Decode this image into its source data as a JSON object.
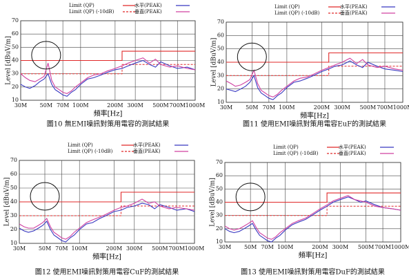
{
  "chart_data": [
    {
      "type": "line",
      "caption": "圖10 無EMI噪訊對策用電容的測試結果",
      "x_label": "頻率[Hz]",
      "y_label": "Level [dBuV/m]",
      "xscale": "log",
      "xlim": [
        30,
        1000
      ],
      "ylim": [
        10,
        70
      ],
      "grid": true,
      "xticks": [
        {
          "value": 30,
          "label": "30M"
        },
        {
          "value": 50,
          "label": "50M"
        },
        {
          "value": 70,
          "label": "70M"
        },
        {
          "value": 100,
          "label": "100M"
        },
        {
          "value": 200,
          "label": "200M"
        },
        {
          "value": 300,
          "label": "300M"
        },
        {
          "value": 500,
          "label": "500M"
        },
        {
          "value": 700,
          "label": "700M"
        },
        {
          "value": 1000,
          "label": "1000M"
        }
      ],
      "yticks": [
        10,
        20,
        30,
        40,
        50,
        60,
        70
      ],
      "series": [
        {
          "name": "Limit (QP)",
          "color": "#e02828",
          "dash": false,
          "x": [
            30,
            230,
            230,
            1000
          ],
          "values": [
            40,
            40,
            47,
            47
          ]
        },
        {
          "name": "Limit (QP) (-10dB)",
          "color": "#e02828",
          "dash": true,
          "x": [
            30,
            230,
            230,
            1000
          ],
          "values": [
            30,
            30,
            37,
            37
          ]
        },
        {
          "name": "水平(PEAK)",
          "color": "#3838c0",
          "dash": false,
          "x": [
            30,
            33,
            36,
            40,
            44,
            48,
            52,
            56,
            60,
            65,
            70,
            76,
            83,
            90,
            100,
            115,
            130,
            150,
            170,
            200,
            230,
            260,
            300,
            350,
            400,
            450,
            500,
            600,
            700,
            850,
            1000
          ],
          "values": [
            22,
            20,
            19,
            21,
            24,
            26,
            30,
            22,
            18,
            16,
            14,
            13,
            16,
            18,
            22,
            26,
            27,
            29,
            31,
            33,
            34,
            36,
            38,
            40,
            37,
            35,
            39,
            36,
            34,
            35,
            33
          ]
        },
        {
          "name": "垂直(PEAK)",
          "color": "#d040a0",
          "dash": false,
          "x": [
            30,
            33,
            36,
            40,
            44,
            48,
            52,
            56,
            60,
            65,
            70,
            76,
            83,
            90,
            100,
            115,
            130,
            150,
            170,
            200,
            230,
            260,
            300,
            350,
            400,
            450,
            500,
            600,
            700,
            850,
            1000
          ],
          "values": [
            30,
            27,
            25,
            24,
            26,
            28,
            38,
            25,
            20,
            18,
            16,
            15,
            17,
            20,
            23,
            27,
            29,
            30,
            32,
            34,
            36,
            38,
            40,
            42,
            38,
            41,
            37,
            35,
            36,
            34,
            33
          ]
        }
      ]
    },
    {
      "type": "line",
      "caption": "圖11 使用EMI噪訊對策用電容EuF的測試結果",
      "x_label": "頻率[Hz]",
      "y_label": "Level [dBuV/m]",
      "xscale": "log",
      "xlim": [
        30,
        1000
      ],
      "ylim": [
        10,
        70
      ],
      "grid": true,
      "xticks": [
        {
          "value": 30,
          "label": "30M"
        },
        {
          "value": 50,
          "label": "50M"
        },
        {
          "value": 70,
          "label": "70M"
        },
        {
          "value": 100,
          "label": "100M"
        },
        {
          "value": 200,
          "label": "200M"
        },
        {
          "value": 300,
          "label": "300M"
        },
        {
          "value": 500,
          "label": "500M"
        },
        {
          "value": 700,
          "label": "700M"
        },
        {
          "value": 1000,
          "label": "1000M"
        }
      ],
      "yticks": [
        10,
        20,
        30,
        40,
        50,
        60,
        70
      ],
      "series": [
        {
          "name": "Limit (QP)",
          "color": "#e02828",
          "dash": false,
          "x": [
            30,
            230,
            230,
            1000
          ],
          "values": [
            40,
            40,
            47,
            47
          ]
        },
        {
          "name": "Limit (QP) (-10dB)",
          "color": "#e02828",
          "dash": true,
          "x": [
            30,
            230,
            230,
            1000
          ],
          "values": [
            30,
            30,
            37,
            37
          ]
        },
        {
          "name": "水平(PEAK)",
          "color": "#3838c0",
          "dash": false,
          "x": [
            30,
            33,
            36,
            40,
            44,
            48,
            52,
            56,
            60,
            65,
            70,
            76,
            83,
            90,
            100,
            115,
            130,
            150,
            170,
            200,
            230,
            260,
            300,
            350,
            400,
            450,
            500,
            600,
            700,
            850,
            1000
          ],
          "values": [
            20,
            19,
            18,
            20,
            22,
            25,
            30,
            21,
            17,
            15,
            13,
            12,
            15,
            17,
            21,
            25,
            26,
            28,
            30,
            33,
            35,
            37,
            38,
            41,
            38,
            36,
            40,
            37,
            35,
            34,
            33
          ]
        },
        {
          "name": "垂直(PEAK)",
          "color": "#d040a0",
          "dash": false,
          "x": [
            30,
            33,
            36,
            40,
            44,
            48,
            52,
            56,
            60,
            65,
            70,
            76,
            83,
            90,
            100,
            115,
            130,
            150,
            170,
            200,
            230,
            260,
            300,
            350,
            400,
            450,
            500,
            600,
            700,
            850,
            1000
          ],
          "values": [
            26,
            24,
            22,
            23,
            25,
            27,
            34,
            24,
            19,
            17,
            15,
            14,
            16,
            19,
            22,
            26,
            28,
            29,
            31,
            34,
            36,
            38,
            40,
            43,
            39,
            42,
            38,
            36,
            37,
            35,
            34
          ]
        }
      ]
    },
    {
      "type": "line",
      "caption": "圖12 使用EMI噪訊對策用電容CuF的測試結果",
      "x_label": "頻率[Hz]",
      "y_label": "Level [dBuV/m]",
      "xscale": "log",
      "xlim": [
        30,
        1000
      ],
      "ylim": [
        10,
        70
      ],
      "grid": true,
      "xticks": [
        {
          "value": 30,
          "label": "30M"
        },
        {
          "value": 50,
          "label": "50M"
        },
        {
          "value": 70,
          "label": "70M"
        },
        {
          "value": 100,
          "label": "100M"
        },
        {
          "value": 200,
          "label": "200M"
        },
        {
          "value": 300,
          "label": "300M"
        },
        {
          "value": 500,
          "label": "500M"
        },
        {
          "value": 700,
          "label": "700M"
        },
        {
          "value": 1000,
          "label": "1000M"
        }
      ],
      "yticks": [
        10,
        20,
        30,
        40,
        50,
        60,
        70
      ],
      "series": [
        {
          "name": "Limit (QP)",
          "color": "#e02828",
          "dash": false,
          "x": [
            30,
            230,
            230,
            1000
          ],
          "values": [
            40,
            40,
            47,
            47
          ]
        },
        {
          "name": "Limit (QP) (-10dB)",
          "color": "#e02828",
          "dash": true,
          "x": [
            30,
            230,
            230,
            1000
          ],
          "values": [
            30,
            30,
            37,
            37
          ]
        },
        {
          "name": "水平(PEAK)",
          "color": "#3838c0",
          "dash": false,
          "x": [
            30,
            33,
            36,
            40,
            44,
            48,
            52,
            56,
            60,
            65,
            70,
            76,
            83,
            90,
            100,
            115,
            130,
            150,
            170,
            200,
            230,
            260,
            300,
            350,
            400,
            450,
            500,
            600,
            700,
            850,
            1000
          ],
          "values": [
            21,
            19,
            18,
            19,
            21,
            23,
            26,
            20,
            16,
            14,
            12,
            11,
            14,
            16,
            20,
            24,
            25,
            28,
            30,
            33,
            34,
            36,
            37,
            39,
            38,
            35,
            38,
            36,
            34,
            35,
            33
          ]
        },
        {
          "name": "垂直(PEAK)",
          "color": "#d040a0",
          "dash": false,
          "x": [
            30,
            33,
            36,
            40,
            44,
            48,
            52,
            56,
            60,
            65,
            70,
            76,
            83,
            90,
            100,
            115,
            130,
            150,
            170,
            200,
            230,
            260,
            300,
            350,
            400,
            450,
            500,
            600,
            700,
            850,
            1000
          ],
          "values": [
            24,
            22,
            21,
            21,
            23,
            25,
            28,
            22,
            18,
            16,
            14,
            13,
            15,
            18,
            21,
            25,
            27,
            29,
            31,
            34,
            36,
            37,
            39,
            42,
            39,
            40,
            37,
            35,
            36,
            35,
            34
          ]
        }
      ]
    },
    {
      "type": "line",
      "caption": "圖13 使用EMI噪訊對策用電容DuF的測試結果",
      "x_label": "頻率[Hz]",
      "y_label": "Level [dBuV/m]",
      "xscale": "log",
      "xlim": [
        30,
        1000
      ],
      "ylim": [
        10,
        70
      ],
      "grid": true,
      "xticks": [
        {
          "value": 30,
          "label": "30M"
        },
        {
          "value": 50,
          "label": "50M"
        },
        {
          "value": 70,
          "label": "70M"
        },
        {
          "value": 100,
          "label": "100M"
        },
        {
          "value": 200,
          "label": "200M"
        },
        {
          "value": 300,
          "label": "300M"
        },
        {
          "value": 500,
          "label": "500M"
        },
        {
          "value": 700,
          "label": "700M"
        },
        {
          "value": 1000,
          "label": "1000M"
        }
      ],
      "yticks": [
        10,
        20,
        30,
        40,
        50,
        60,
        70
      ],
      "series": [
        {
          "name": "Limit (QP)",
          "color": "#e02828",
          "dash": false,
          "x": [
            30,
            230,
            230,
            1000
          ],
          "values": [
            40,
            40,
            47,
            47
          ]
        },
        {
          "name": "Limit (QP) (-10dB)",
          "color": "#e02828",
          "dash": true,
          "x": [
            30,
            230,
            230,
            1000
          ],
          "values": [
            30,
            30,
            37,
            37
          ]
        },
        {
          "name": "水平(PEAK)",
          "color": "#3838c0",
          "dash": false,
          "x": [
            30,
            33,
            36,
            40,
            44,
            48,
            52,
            56,
            60,
            65,
            70,
            76,
            83,
            90,
            100,
            115,
            130,
            150,
            170,
            200,
            230,
            260,
            300,
            350,
            400,
            450,
            500,
            600,
            700,
            850,
            1000
          ],
          "values": [
            20,
            18,
            17,
            18,
            20,
            22,
            24,
            19,
            15,
            13,
            11,
            10,
            13,
            15,
            19,
            23,
            25,
            27,
            30,
            34,
            37,
            40,
            42,
            44,
            42,
            40,
            41,
            38,
            36,
            35,
            34
          ]
        },
        {
          "name": "垂直(PEAK)",
          "color": "#d040a0",
          "dash": false,
          "x": [
            30,
            33,
            36,
            40,
            44,
            48,
            52,
            56,
            60,
            65,
            70,
            76,
            83,
            90,
            100,
            115,
            130,
            150,
            170,
            200,
            230,
            260,
            300,
            350,
            400,
            450,
            500,
            600,
            700,
            850,
            1000
          ],
          "values": [
            22,
            20,
            19,
            20,
            22,
            24,
            26,
            21,
            17,
            15,
            13,
            12,
            14,
            17,
            20,
            24,
            26,
            28,
            31,
            35,
            38,
            41,
            43,
            45,
            42,
            41,
            40,
            37,
            36,
            35,
            34
          ]
        }
      ]
    }
  ]
}
